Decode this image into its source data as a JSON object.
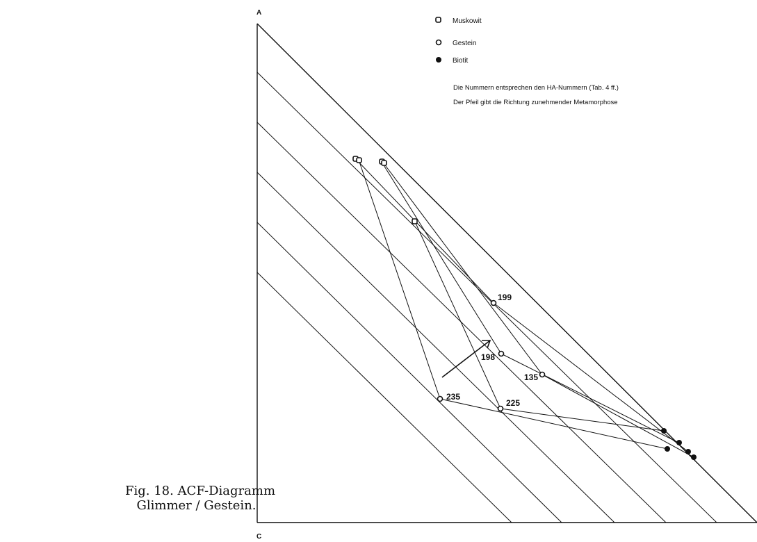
{
  "vertices": {
    "a": "A",
    "c": "C"
  },
  "legend": [
    {
      "marker": "square",
      "label": "Muskowit"
    },
    {
      "marker": "open-circle",
      "label": "Gestein"
    },
    {
      "marker": "filled-circle",
      "label": "Biotit"
    }
  ],
  "notes": [
    "Die Nummern entsprechen den HA-Nummern (Tab. 4 ff.)",
    "Der Pfeil gibt die Richtung zunehmender Metamorphose"
  ],
  "rock_samples": [
    "199",
    "198",
    "135",
    "235",
    "225"
  ],
  "caption": {
    "line1": "Fig. 18. ACF-Diagramm",
    "line2": "Glimmer / Gestein."
  },
  "colors": {
    "ink": "#111111",
    "paper": "#ffffff"
  }
}
